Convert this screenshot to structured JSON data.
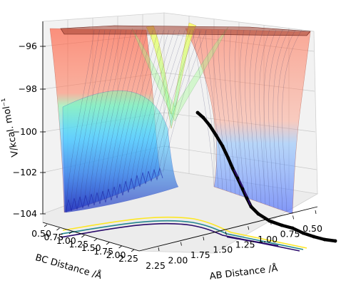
{
  "chart_data": {
    "type": "surface3d",
    "zlabel": "V/kcal mol$^{-1}$",
    "zlabel_display": "V/kcal. mol⁻¹",
    "xlabel": "AB Distance /Å",
    "ylabel": "BC Distance /Å",
    "zlim": [
      -104,
      -95
    ],
    "z_ticks": [
      "−96",
      "−98",
      "−100",
      "−102",
      "−104"
    ],
    "z_tick_values": [
      -96,
      -98,
      -100,
      -102,
      -104
    ],
    "x_ticks": [
      "2.25",
      "2.00",
      "1.75",
      "1.50",
      "1.25",
      "1.00",
      "0.75",
      "0.50"
    ],
    "x_tick_values": [
      2.25,
      2.0,
      1.75,
      1.5,
      1.25,
      1.0,
      0.75,
      0.5
    ],
    "y_ticks": [
      "0.50",
      "0.75",
      "1.00",
      "1.25",
      "1.50",
      "1.75",
      "2.00",
      "2.25"
    ],
    "y_tick_values": [
      0.5,
      0.75,
      1.0,
      1.25,
      1.5,
      1.75,
      2.0,
      2.25
    ],
    "colormap": "jet",
    "surface_alpha": 0.5,
    "trajectory": {
      "color": "#000000",
      "points": [
        {
          "ab": 0.5,
          "bc": 2.6,
          "v": -104.5
        },
        {
          "ab": 0.6,
          "bc": 2.4,
          "v": -104.3
        },
        {
          "ab": 0.72,
          "bc": 2.2,
          "v": -104.0
        },
        {
          "ab": 0.8,
          "bc": 2.0,
          "v": -103.6
        },
        {
          "ab": 0.9,
          "bc": 1.8,
          "v": -103.0
        },
        {
          "ab": 1.0,
          "bc": 1.6,
          "v": -102.2
        },
        {
          "ab": 1.1,
          "bc": 1.4,
          "v": -101.3
        },
        {
          "ab": 1.18,
          "bc": 1.2,
          "v": -100.4
        },
        {
          "ab": 1.25,
          "bc": 1.05,
          "v": -99.9
        }
      ]
    },
    "contour_colors": [
      "#2a0a6b",
      "#24868e",
      "#fde725"
    ],
    "grid": true
  }
}
